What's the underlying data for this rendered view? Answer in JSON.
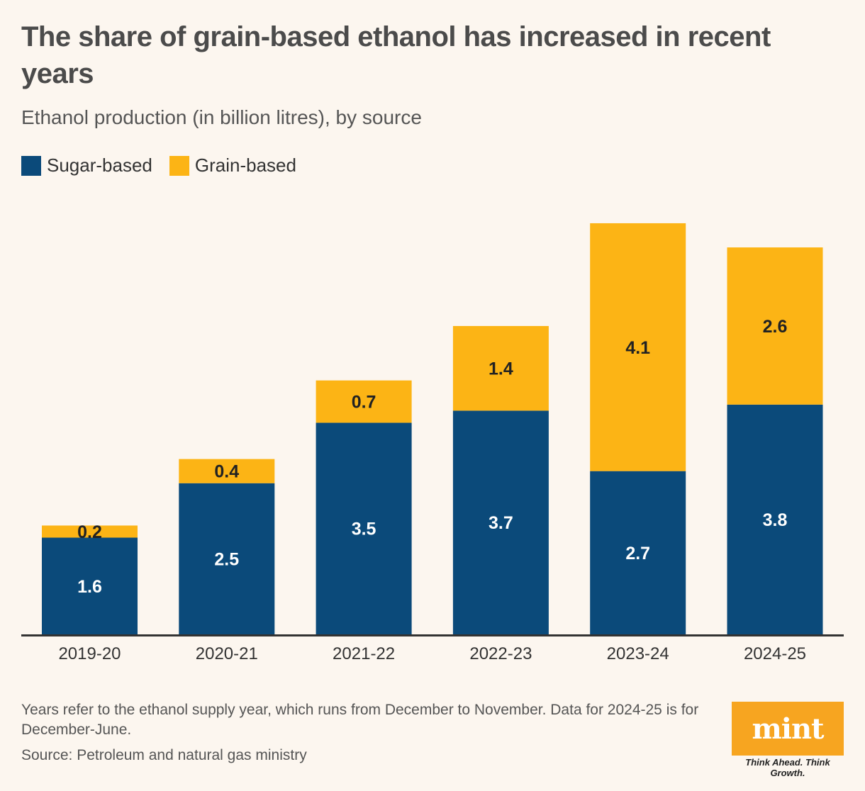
{
  "title": "The share of grain-based ethanol has increased in recent years",
  "subtitle": "Ethanol production (in billion litres), by source",
  "legend": [
    {
      "label": "Sugar-based",
      "color": "#0b4a7a"
    },
    {
      "label": "Grain-based",
      "color": "#fcb415"
    }
  ],
  "chart_data": {
    "type": "bar",
    "stacked": true,
    "categories": [
      "2019-20",
      "2020-21",
      "2021-22",
      "2022-23",
      "2023-24",
      "2024-25"
    ],
    "series": [
      {
        "name": "Sugar-based",
        "values": [
          1.6,
          2.5,
          3.5,
          3.7,
          2.7,
          3.8
        ],
        "color": "#0b4a7a"
      },
      {
        "name": "Grain-based",
        "values": [
          0.2,
          0.4,
          0.7,
          1.4,
          4.1,
          2.6
        ],
        "color": "#fcb415"
      }
    ],
    "title": "The share of grain-based ethanol has increased in recent years",
    "ylim": [
      0,
      6.8
    ],
    "grid": false,
    "legend_position": "top-left"
  },
  "footnote": "Years refer to the ethanol supply year, which runs from December to November. Data for 2024-25 is for December-June.",
  "source": "Source: Petroleum and natural gas ministry",
  "logo": {
    "text": "mint",
    "tagline": "Think Ahead. Think Growth.",
    "color": "#f7a520"
  }
}
